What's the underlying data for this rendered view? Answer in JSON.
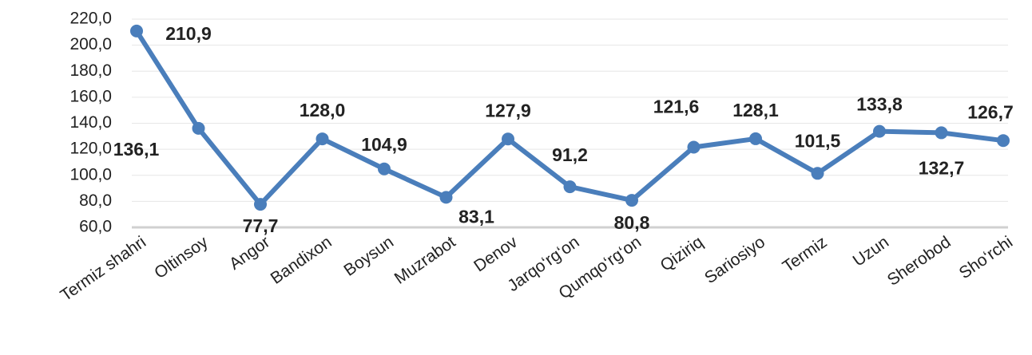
{
  "chart_data": {
    "type": "line",
    "categories": [
      "Termiz shahri",
      "Oltinsoy",
      "Angor",
      "Bandixon",
      "Boysun",
      "Muzrabot",
      "Denov",
      "Jarqo‘rg‘on",
      "Qumqo‘rg‘on",
      "Qiziriq",
      "Sariosiyo",
      "Termiz",
      "Uzun",
      "Sherobod",
      "Sho‘rchi"
    ],
    "values": [
      210.9,
      136.1,
      77.7,
      128.0,
      104.9,
      83.1,
      127.9,
      91.2,
      80.8,
      121.6,
      128.1,
      101.5,
      133.8,
      132.7,
      126.7
    ],
    "value_labels": [
      "210,9",
      "136,1",
      "77,7",
      "128,0",
      "104,9",
      "83,1",
      "127,9",
      "91,2",
      "80,8",
      "121,6",
      "128,1",
      "101,5",
      "133,8",
      "132,7",
      "126,7"
    ],
    "color": "#4a7ebb",
    "ylim": [
      60,
      220
    ],
    "yticks": [
      {
        "value": 60,
        "label": "60,0"
      },
      {
        "value": 80,
        "label": "80,0"
      },
      {
        "value": 100,
        "label": "100,0"
      },
      {
        "value": 120,
        "label": "120,0"
      },
      {
        "value": 140,
        "label": "140,0"
      },
      {
        "value": 160,
        "label": "160,0"
      },
      {
        "value": 180,
        "label": "180,0"
      },
      {
        "value": 200,
        "label": "200,0"
      },
      {
        "value": 220,
        "label": "220,0"
      }
    ],
    "grid": true
  }
}
